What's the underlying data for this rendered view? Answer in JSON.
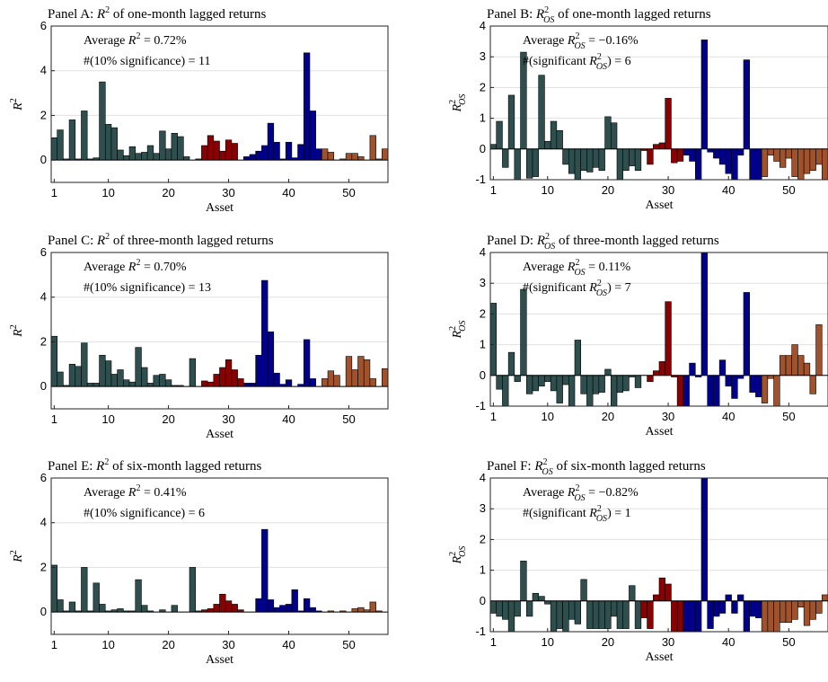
{
  "chart_data": [
    {
      "type": "bar",
      "title": "Panel A: R² of one-month lagged returns",
      "xlabel": "Asset",
      "ylabel": "R²",
      "xlim": [
        0.5,
        56.5
      ],
      "ylim": [
        -1,
        6
      ],
      "yticks": [
        0,
        2,
        4,
        6
      ],
      "xticks": [
        1,
        10,
        20,
        30,
        40,
        50
      ],
      "grid": "horizontal",
      "annotations": [
        "Average R² = 0.72%",
        "#(10% significance) = 11"
      ],
      "x": [
        1,
        2,
        3,
        4,
        5,
        6,
        7,
        8,
        9,
        10,
        11,
        12,
        13,
        14,
        15,
        16,
        17,
        18,
        19,
        20,
        21,
        22,
        23,
        24,
        25,
        26,
        27,
        28,
        29,
        30,
        31,
        32,
        33,
        34,
        35,
        36,
        37,
        38,
        39,
        40,
        41,
        42,
        43,
        44,
        45,
        46,
        47,
        48,
        49,
        50,
        51,
        52,
        53,
        54,
        55,
        56
      ],
      "values": [
        1.0,
        1.35,
        0.05,
        1.8,
        0.05,
        2.2,
        0.05,
        0.1,
        3.5,
        1.6,
        1.45,
        0.45,
        0.2,
        0.6,
        0.3,
        0.35,
        0.65,
        0.3,
        1.3,
        0.5,
        1.2,
        1.05,
        0.15,
        0.0,
        0.05,
        0.65,
        1.1,
        0.85,
        0.4,
        0.9,
        0.75,
        0.0,
        0.15,
        0.25,
        0.4,
        0.65,
        1.65,
        0.8,
        0.05,
        0.8,
        0.1,
        0.7,
        4.8,
        2.2,
        0.5,
        0.5,
        0.35,
        0.0,
        0.05,
        0.3,
        0.3,
        0.15,
        0.0,
        1.1,
        0.05,
        0.5
      ]
    },
    {
      "type": "bar",
      "title": "Panel B: R²OS of one-month lagged returns",
      "xlabel": "Asset",
      "ylabel": "R²OS",
      "xlim": [
        0.5,
        56.5
      ],
      "ylim": [
        -1,
        4
      ],
      "yticks": [
        -1,
        0,
        1,
        2,
        3,
        4
      ],
      "xticks": [
        1,
        10,
        20,
        30,
        40,
        50
      ],
      "grid": "horizontal",
      "annotations": [
        "Average R²OS = −0.16%",
        "#(significant R²OS) = 6"
      ],
      "x": [
        1,
        2,
        3,
        4,
        5,
        6,
        7,
        8,
        9,
        10,
        11,
        12,
        13,
        14,
        15,
        16,
        17,
        18,
        19,
        20,
        21,
        22,
        23,
        24,
        25,
        26,
        27,
        28,
        29,
        30,
        31,
        32,
        33,
        34,
        35,
        36,
        37,
        38,
        39,
        40,
        41,
        42,
        43,
        44,
        45,
        46,
        47,
        48,
        49,
        50,
        51,
        52,
        53,
        54,
        55,
        56
      ],
      "values": [
        0.15,
        0.9,
        -0.6,
        1.75,
        -1.0,
        3.15,
        -0.95,
        -0.9,
        2.4,
        0.25,
        0.9,
        0.6,
        -0.5,
        -0.8,
        -1.0,
        -0.7,
        -0.75,
        -0.6,
        -0.7,
        1.05,
        0.85,
        -1.0,
        -0.7,
        -0.55,
        -0.7,
        -0.05,
        -0.5,
        0.15,
        0.2,
        1.65,
        -0.45,
        -0.4,
        -0.2,
        -0.4,
        -1.0,
        3.55,
        -0.1,
        -0.3,
        -0.5,
        -0.8,
        -1.0,
        -0.2,
        2.9,
        -1.0,
        -1.0,
        -0.9,
        -0.2,
        -0.4,
        -0.6,
        -0.3,
        -0.9,
        -1.0,
        -0.8,
        -0.7,
        -0.5,
        -1.0
      ]
    },
    {
      "type": "bar",
      "title": "Panel C: R² of three-month lagged returns",
      "xlabel": "Asset",
      "ylabel": "R²",
      "xlim": [
        0.5,
        56.5
      ],
      "ylim": [
        -1,
        6
      ],
      "yticks": [
        0,
        2,
        4,
        6
      ],
      "xticks": [
        1,
        10,
        20,
        30,
        40,
        50
      ],
      "grid": "horizontal",
      "annotations": [
        "Average R² = 0.70%",
        "#(10% significance) = 13"
      ],
      "x": [
        1,
        2,
        3,
        4,
        5,
        6,
        7,
        8,
        9,
        10,
        11,
        12,
        13,
        14,
        15,
        16,
        17,
        18,
        19,
        20,
        21,
        22,
        23,
        24,
        25,
        26,
        27,
        28,
        29,
        30,
        31,
        32,
        33,
        34,
        35,
        36,
        37,
        38,
        39,
        40,
        41,
        42,
        43,
        44,
        45,
        46,
        47,
        48,
        49,
        50,
        51,
        52,
        53,
        54,
        55,
        56
      ],
      "values": [
        2.25,
        0.65,
        0.05,
        1.0,
        0.9,
        1.95,
        0.15,
        0.15,
        1.4,
        1.15,
        0.55,
        0.75,
        0.3,
        0.2,
        1.75,
        0.85,
        0.15,
        0.5,
        0.55,
        0.3,
        0.05,
        0.05,
        0.0,
        1.25,
        0.0,
        0.25,
        0.2,
        0.55,
        0.85,
        1.2,
        0.75,
        0.35,
        0.15,
        0.15,
        1.4,
        4.75,
        2.45,
        0.6,
        0.1,
        0.3,
        0.0,
        0.1,
        2.1,
        0.35,
        0.0,
        0.35,
        0.7,
        0.5,
        0.0,
        1.35,
        0.75,
        1.35,
        1.2,
        0.35,
        0.0,
        0.8
      ]
    },
    {
      "type": "bar",
      "title": "Panel D: R²OS of three-month lagged returns",
      "xlabel": "Asset",
      "ylabel": "R²OS",
      "xlim": [
        0.5,
        56.5
      ],
      "ylim": [
        -1,
        4
      ],
      "yticks": [
        -1,
        0,
        1,
        2,
        3,
        4
      ],
      "xticks": [
        1,
        10,
        20,
        30,
        40,
        50
      ],
      "grid": "horizontal",
      "annotations": [
        "Average R²OS = 0.11%",
        "#(significant R²OS) = 7"
      ],
      "x": [
        1,
        2,
        3,
        4,
        5,
        6,
        7,
        8,
        9,
        10,
        11,
        12,
        13,
        14,
        15,
        16,
        17,
        18,
        19,
        20,
        21,
        22,
        23,
        24,
        25,
        26,
        27,
        28,
        29,
        30,
        31,
        32,
        33,
        34,
        35,
        36,
        37,
        38,
        39,
        40,
        41,
        42,
        43,
        44,
        45,
        46,
        47,
        48,
        49,
        50,
        51,
        52,
        53,
        54,
        55,
        56
      ],
      "values": [
        2.35,
        -0.45,
        -1.0,
        0.75,
        -0.2,
        2.8,
        -0.6,
        -0.5,
        -0.35,
        -0.2,
        -0.5,
        -0.9,
        -0.3,
        -1.0,
        1.15,
        -0.6,
        -1.0,
        -0.6,
        -0.55,
        0.2,
        -1.0,
        -0.55,
        -0.5,
        -0.05,
        -0.4,
        0.0,
        -0.2,
        0.15,
        0.45,
        2.4,
        -0.05,
        -1.0,
        -1.0,
        0.4,
        -0.05,
        4.0,
        -1.0,
        -1.0,
        0.5,
        -0.35,
        -0.75,
        -0.1,
        2.7,
        -0.55,
        -0.7,
        -0.9,
        -0.1,
        -1.0,
        0.65,
        0.65,
        1.0,
        0.65,
        0.4,
        -0.6,
        1.65,
        0.0
      ]
    },
    {
      "type": "bar",
      "title": "Panel E: R² of six-month lagged returns",
      "xlabel": "Asset",
      "ylabel": "R²",
      "xlim": [
        0.5,
        56.5
      ],
      "ylim": [
        -1,
        6
      ],
      "yticks": [
        0,
        2,
        4,
        6
      ],
      "xticks": [
        1,
        10,
        20,
        30,
        40,
        50
      ],
      "grid": "horizontal",
      "annotations": [
        "Average R² = 0.41%",
        "#(10% significance) = 6"
      ],
      "x": [
        1,
        2,
        3,
        4,
        5,
        6,
        7,
        8,
        9,
        10,
        11,
        12,
        13,
        14,
        15,
        16,
        17,
        18,
        19,
        20,
        21,
        22,
        23,
        24,
        25,
        26,
        27,
        28,
        29,
        30,
        31,
        32,
        33,
        34,
        35,
        36,
        37,
        38,
        39,
        40,
        41,
        42,
        43,
        44,
        45,
        46,
        47,
        48,
        49,
        50,
        51,
        52,
        53,
        54,
        55,
        56
      ],
      "values": [
        2.1,
        0.55,
        0.05,
        0.45,
        0.05,
        2.0,
        0.05,
        1.3,
        0.35,
        0.05,
        0.1,
        0.15,
        0.05,
        0.05,
        1.45,
        0.3,
        0.05,
        0.0,
        0.1,
        0.0,
        0.3,
        0.0,
        0.0,
        2.0,
        0.05,
        0.1,
        0.15,
        0.35,
        0.8,
        0.5,
        0.35,
        0.1,
        0.0,
        0.0,
        0.6,
        3.7,
        0.55,
        0.2,
        0.3,
        0.35,
        1.0,
        0.05,
        0.6,
        0.2,
        0.05,
        0.0,
        0.05,
        0.0,
        0.05,
        0.0,
        0.15,
        0.2,
        0.1,
        0.45,
        0.05,
        0.0
      ]
    },
    {
      "type": "bar",
      "title": "Panel F: R²OS of six-month lagged returns",
      "xlabel": "Asset",
      "ylabel": "R²OS",
      "xlim": [
        0.5,
        56.5
      ],
      "ylim": [
        -1,
        4
      ],
      "yticks": [
        -1,
        0,
        1,
        2,
        3,
        4
      ],
      "xticks": [
        1,
        10,
        20,
        30,
        40,
        50
      ],
      "grid": "horizontal",
      "annotations": [
        "Average R²OS = −0.82%",
        "#(significant R²OS) = 1"
      ],
      "x": [
        1,
        2,
        3,
        4,
        5,
        6,
        7,
        8,
        9,
        10,
        11,
        12,
        13,
        14,
        15,
        16,
        17,
        18,
        19,
        20,
        21,
        22,
        23,
        24,
        25,
        26,
        27,
        28,
        29,
        30,
        31,
        32,
        33,
        34,
        35,
        36,
        37,
        38,
        39,
        40,
        41,
        42,
        43,
        44,
        45,
        46,
        47,
        48,
        49,
        50,
        51,
        52,
        53,
        54,
        55,
        56
      ],
      "values": [
        -0.4,
        -0.5,
        -0.6,
        -1.0,
        -0.5,
        1.3,
        -0.5,
        0.25,
        0.15,
        -0.1,
        -1.0,
        -0.9,
        -1.0,
        -0.6,
        -0.75,
        0.7,
        -0.9,
        -0.9,
        -0.9,
        -0.9,
        -0.5,
        -0.9,
        -0.9,
        0.5,
        -0.9,
        -0.55,
        -0.9,
        0.2,
        0.75,
        0.55,
        -1.0,
        -1.0,
        -1.0,
        -1.0,
        -1.0,
        4.0,
        -0.9,
        -0.5,
        -0.4,
        0.2,
        -0.4,
        0.2,
        -1.0,
        -0.5,
        -0.55,
        -1.0,
        -1.0,
        -1.0,
        -0.7,
        -0.7,
        -0.6,
        -0.2,
        -0.8,
        -0.6,
        -0.4,
        0.2
      ]
    }
  ],
  "colors": {
    "group_1": "#2f4f4f",
    "group_2": "#8b0000",
    "group_3": "#00008b",
    "group_4": "#a0522d"
  },
  "asset_group_starts": [
    1,
    26,
    33,
    46
  ]
}
